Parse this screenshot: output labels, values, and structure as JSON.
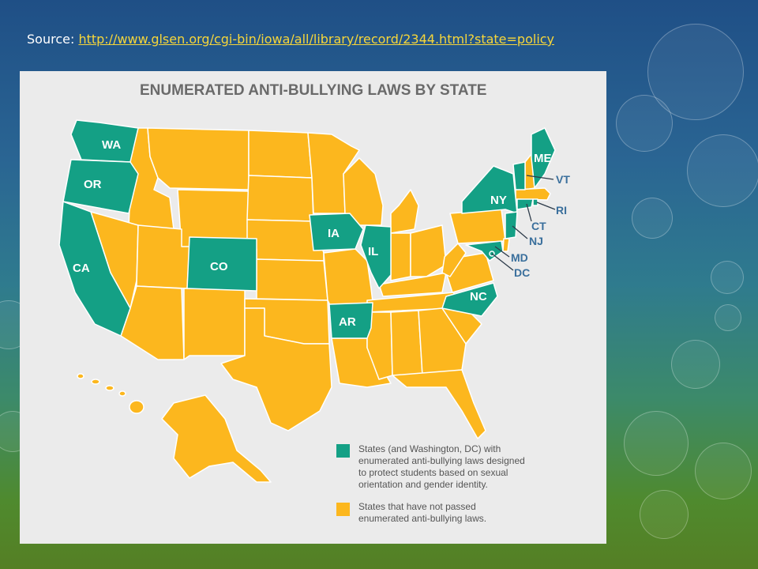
{
  "source": {
    "label": "Source:",
    "url": "http://www.glsen.org/cgi-bin/iowa/all/library/record/2344.html?state=policy"
  },
  "map": {
    "title": "ENUMERATED ANTI-BULLYING LAWS BY STATE",
    "colors": {
      "enumerated": "#14a085",
      "not_passed": "#fcb71e",
      "background": "#ebebeb",
      "border": "#ffffff"
    },
    "state_labels": [
      "WA",
      "OR",
      "CA",
      "CO",
      "IA",
      "IL",
      "AR",
      "NC",
      "NY",
      "ME"
    ],
    "callout_labels": [
      "VT",
      "RI",
      "CT",
      "NJ",
      "MD",
      "DC"
    ],
    "legend": [
      {
        "color": "#14a085",
        "lines": [
          "States (and Washington, DC) with",
          "enumerated anti-bullying laws designed",
          "to protect students based on sexual",
          "orientation and gender identity."
        ]
      },
      {
        "color": "#fcb71e",
        "lines": [
          "States that have not passed",
          "enumerated anti-bullying laws."
        ]
      }
    ]
  }
}
